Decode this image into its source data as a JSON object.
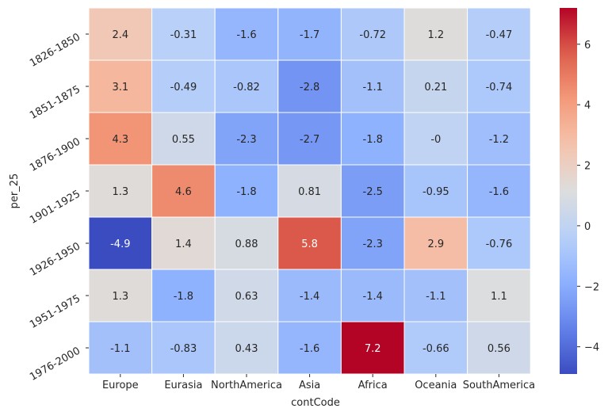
{
  "chart_data": {
    "type": "heatmap",
    "xlabel": "contCode",
    "ylabel": "per_25",
    "columns": [
      "Europe",
      "Eurasia",
      "NorthAmerica",
      "Asia",
      "Africa",
      "Oceania",
      "SouthAmerica"
    ],
    "rows": [
      "1826-1850",
      "1851-1875",
      "1876-1900",
      "1901-1925",
      "1926-1950",
      "1951-1975",
      "1976-2000"
    ],
    "values": [
      [
        2.4,
        -0.31,
        -1.6,
        -1.7,
        -0.72,
        1.2,
        -0.47
      ],
      [
        3.1,
        -0.49,
        -0.82,
        -2.8,
        -1.1,
        0.21,
        -0.74
      ],
      [
        4.3,
        0.55,
        -2.3,
        -2.7,
        -1.8,
        0,
        -1.2
      ],
      [
        1.3,
        4.6,
        -1.8,
        0.81,
        -2.5,
        -0.95,
        -1.6
      ],
      [
        -4.9,
        1.4,
        0.88,
        5.8,
        -2.3,
        2.9,
        -0.76
      ],
      [
        1.3,
        -1.8,
        0.63,
        -1.4,
        -1.4,
        -1.1,
        1.1
      ],
      [
        -1.1,
        -0.83,
        0.43,
        -1.6,
        7.2,
        -0.66,
        0.56
      ]
    ],
    "cell_labels": [
      [
        "2.4",
        "-0.31",
        "-1.6",
        "-1.7",
        "-0.72",
        "1.2",
        "-0.47"
      ],
      [
        "3.1",
        "-0.49",
        "-0.82",
        "-2.8",
        "-1.1",
        "0.21",
        "-0.74"
      ],
      [
        "4.3",
        "0.55",
        "-2.3",
        "-2.7",
        "-1.8",
        "-0",
        "-1.2"
      ],
      [
        "1.3",
        "4.6",
        "-1.8",
        "0.81",
        "-2.5",
        "-0.95",
        "-1.6"
      ],
      [
        "-4.9",
        "1.4",
        "0.88",
        "5.8",
        "-2.3",
        "2.9",
        "-0.76"
      ],
      [
        "1.3",
        "-1.8",
        "0.63",
        "-1.4",
        "-1.4",
        "-1.1",
        "1.1"
      ],
      [
        "-1.1",
        "-0.83",
        "0.43",
        "-1.6",
        "7.2",
        "-0.66",
        "0.56"
      ]
    ],
    "colormap": "coolwarm",
    "vmin": -4.9,
    "vmax": 7.2,
    "colorbar_ticks": [
      6,
      4,
      2,
      0,
      -2,
      -4
    ],
    "colorbar_tick_labels": [
      "6",
      "4",
      "2",
      "0",
      "−2",
      "−4"
    ]
  }
}
